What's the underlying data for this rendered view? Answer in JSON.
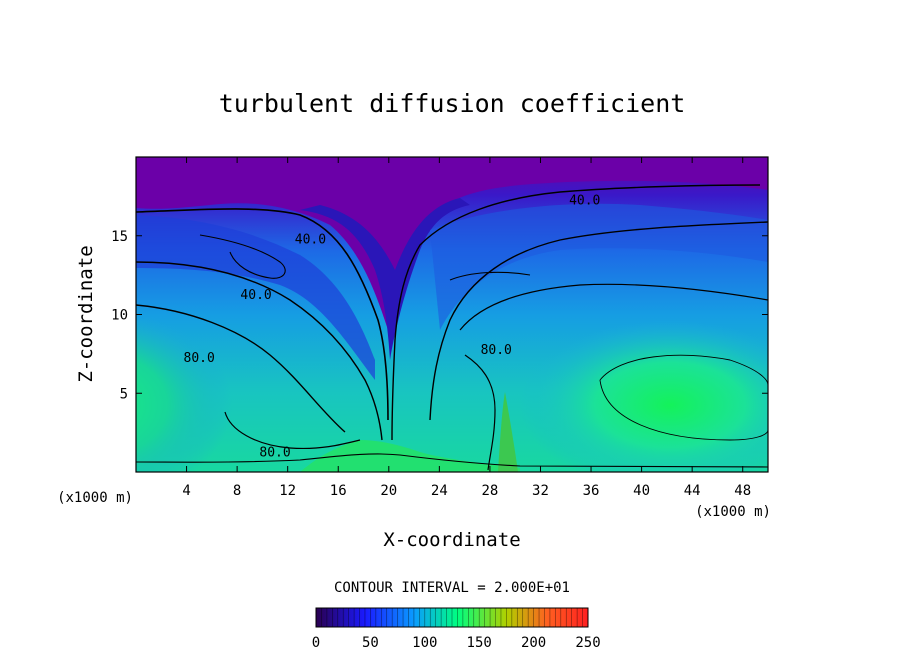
{
  "chart_data": {
    "type": "heatmap",
    "title": "turbulent diffusion coefficient",
    "xlabel": "X-coordinate",
    "ylabel": "Z-coordinate",
    "x_unit": "(x1000 m)",
    "y_unit": "(x1000 m)",
    "xlim": [
      0,
      50
    ],
    "ylim": [
      0,
      20
    ],
    "x_ticks": [
      4,
      8,
      12,
      16,
      20,
      24,
      28,
      32,
      36,
      40,
      44,
      48
    ],
    "y_ticks": [
      5,
      10,
      15
    ],
    "contour_interval_text": "CONTOUR INTERVAL = 2.000E+01",
    "contour_labels": [
      {
        "x": 13.8,
        "z": 14.5,
        "text": "40.0"
      },
      {
        "x": 9.5,
        "z": 11.0,
        "text": "40.0"
      },
      {
        "x": 35.5,
        "z": 17.0,
        "text": "40.0"
      },
      {
        "x": 5.0,
        "z": 7.0,
        "text": "80.0"
      },
      {
        "x": 28.5,
        "z": 7.5,
        "text": "80.0"
      },
      {
        "x": 11.0,
        "z": 1.0,
        "text": "80.0"
      }
    ],
    "colorbar": {
      "ticks": [
        "0",
        "50",
        "100",
        "150",
        "200",
        "250"
      ],
      "range": [
        0,
        250
      ],
      "colors": [
        "#2a0050",
        "#1a1aff",
        "#0a9bff",
        "#00ff80",
        "#b0d000",
        "#ff2020"
      ]
    }
  }
}
